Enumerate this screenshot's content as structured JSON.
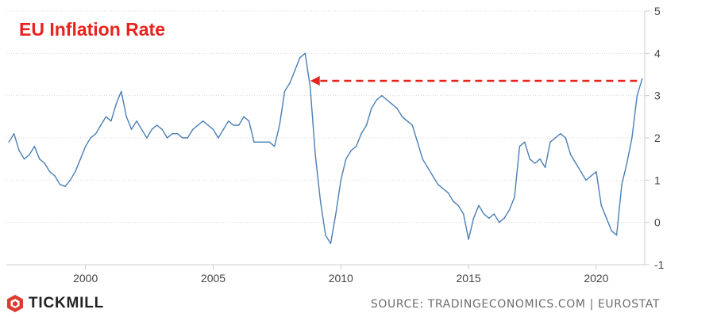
{
  "chart_data": {
    "type": "line",
    "title": "EU Inflation Rate",
    "xlabel": "",
    "ylabel": "",
    "xlim": [
      1996.9,
      2021.9
    ],
    "ylim": [
      -1,
      5
    ],
    "x_ticks": [
      "2000",
      "2005",
      "2010",
      "2015",
      "2020"
    ],
    "y_ticks": [
      "5",
      "4",
      "3",
      "2",
      "1",
      "0",
      "-1"
    ],
    "y_axis_position": "right",
    "grid": "horizontal",
    "line_color": "#4a7fb5",
    "annotation": {
      "type": "dashed-arrow",
      "color": "#e8231e",
      "y": 3.35,
      "from_x": 2021.6,
      "to_x": 2008.8
    },
    "series": [
      {
        "x": [
          1997.0,
          1997.2,
          1997.4,
          1997.6,
          1997.8,
          1998.0,
          1998.2,
          1998.4,
          1998.6,
          1998.8,
          1999.0,
          1999.2,
          1999.4,
          1999.6,
          1999.8,
          2000.0,
          2000.2,
          2000.4,
          2000.6,
          2000.8,
          2001.0,
          2001.2,
          2001.4,
          2001.6,
          2001.8,
          2002.0,
          2002.2,
          2002.4,
          2002.6,
          2002.8,
          2003.0,
          2003.2,
          2003.4,
          2003.6,
          2003.8,
          2004.0,
          2004.2,
          2004.4,
          2004.6,
          2004.8,
          2005.0,
          2005.2,
          2005.4,
          2005.6,
          2005.8,
          2006.0,
          2006.2,
          2006.4,
          2006.6,
          2006.8,
          2007.0,
          2007.2,
          2007.4,
          2007.6,
          2007.8,
          2008.0,
          2008.2,
          2008.4,
          2008.6,
          2008.8,
          2009.0,
          2009.2,
          2009.4,
          2009.6,
          2009.8,
          2010.0,
          2010.2,
          2010.4,
          2010.6,
          2010.8,
          2011.0,
          2011.2,
          2011.4,
          2011.6,
          2011.8,
          2012.0,
          2012.2,
          2012.4,
          2012.6,
          2012.8,
          2013.0,
          2013.2,
          2013.4,
          2013.6,
          2013.8,
          2014.0,
          2014.2,
          2014.4,
          2014.6,
          2014.8,
          2015.0,
          2015.2,
          2015.4,
          2015.6,
          2015.8,
          2016.0,
          2016.2,
          2016.4,
          2016.6,
          2016.8,
          2017.0,
          2017.2,
          2017.4,
          2017.6,
          2017.8,
          2018.0,
          2018.2,
          2018.4,
          2018.6,
          2018.8,
          2019.0,
          2019.2,
          2019.4,
          2019.6,
          2019.8,
          2020.0,
          2020.2,
          2020.4,
          2020.6,
          2020.8,
          2021.0,
          2021.2,
          2021.4,
          2021.6,
          2021.8
        ],
        "y": [
          1.9,
          2.1,
          1.7,
          1.5,
          1.6,
          1.8,
          1.5,
          1.4,
          1.2,
          1.1,
          0.9,
          0.85,
          1.0,
          1.2,
          1.5,
          1.8,
          2.0,
          2.1,
          2.3,
          2.5,
          2.4,
          2.8,
          3.1,
          2.5,
          2.2,
          2.4,
          2.2,
          2.0,
          2.2,
          2.3,
          2.2,
          2.0,
          2.1,
          2.1,
          2.0,
          2.0,
          2.2,
          2.3,
          2.4,
          2.3,
          2.2,
          2.0,
          2.2,
          2.4,
          2.3,
          2.3,
          2.5,
          2.4,
          1.9,
          1.9,
          1.9,
          1.9,
          1.8,
          2.3,
          3.1,
          3.3,
          3.6,
          3.9,
          4.0,
          3.2,
          1.6,
          0.5,
          -0.3,
          -0.5,
          0.2,
          1.0,
          1.5,
          1.7,
          1.8,
          2.1,
          2.3,
          2.7,
          2.9,
          3.0,
          2.9,
          2.8,
          2.7,
          2.5,
          2.4,
          2.3,
          1.9,
          1.5,
          1.3,
          1.1,
          0.9,
          0.8,
          0.7,
          0.5,
          0.4,
          0.2,
          -0.4,
          0.1,
          0.4,
          0.2,
          0.1,
          0.2,
          0.0,
          0.1,
          0.3,
          0.6,
          1.8,
          1.9,
          1.5,
          1.4,
          1.5,
          1.3,
          1.9,
          2.0,
          2.1,
          2.0,
          1.6,
          1.4,
          1.2,
          1.0,
          1.1,
          1.2,
          0.4,
          0.1,
          -0.2,
          -0.3,
          0.9,
          1.4,
          2.0,
          3.0,
          3.4
        ]
      }
    ]
  },
  "source_text": "SOURCE: TRADINGECONOMICS.COM | EUROSTAT",
  "logo": {
    "name": "TICKMILL",
    "icon": "tickmill-logo-icon",
    "color": "#e03a2f"
  }
}
